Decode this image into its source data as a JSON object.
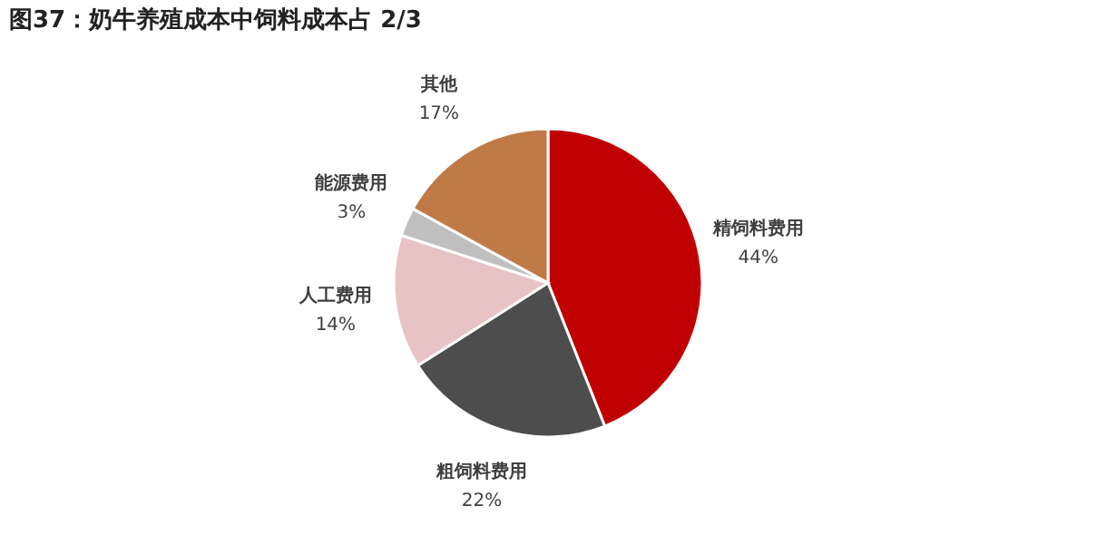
{
  "chart_data": {
    "type": "pie",
    "title": "图37：奶牛养殖成本中饲料成本占 2/3",
    "categories": [
      "精饲料费用",
      "粗饲料费用",
      "人工费用",
      "能源费用",
      "其他"
    ],
    "values": [
      44,
      22,
      14,
      3,
      17
    ],
    "value_labels": [
      "44%",
      "22%",
      "14%",
      "3%",
      "17%"
    ],
    "colors": [
      "#c00000",
      "#4d4d4d",
      "#e8c3c3",
      "#bfbfbf",
      "#c07a46"
    ],
    "legend": false
  }
}
